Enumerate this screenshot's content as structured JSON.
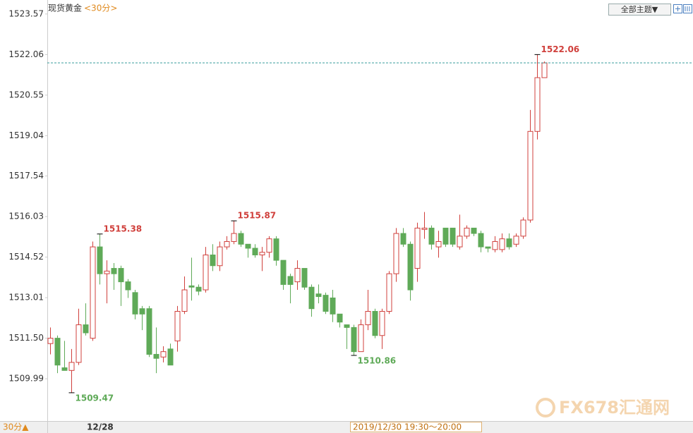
{
  "chart_data": {
    "type": "candlestick",
    "title": "现货黄金",
    "subtitle": "<30分>",
    "toolbar_button": "全部主题▼",
    "period_label": "30分▲",
    "time_label": "2019/12/30 19:30～20:00",
    "watermark": "FX678汇通网",
    "categories": [
      null,
      null,
      null,
      null,
      null,
      null,
      "12/28",
      null,
      null,
      null,
      null,
      null,
      null,
      null,
      null,
      null,
      null,
      null,
      null,
      null,
      null,
      null,
      null,
      null,
      null,
      null,
      null,
      null,
      null,
      null,
      null,
      null,
      null,
      null,
      null,
      null,
      null,
      null,
      null,
      null,
      null,
      null,
      null,
      null,
      null,
      null,
      null,
      null,
      null,
      null,
      null,
      null,
      null,
      null,
      null,
      null,
      null,
      null,
      null,
      null,
      null,
      null,
      null,
      null,
      null,
      null,
      null,
      null,
      null,
      null,
      null
    ],
    "open": [
      1511.3,
      1511.5,
      1510.4,
      1510.3,
      1510.6,
      1512.0,
      1511.5,
      1514.9,
      1513.9,
      1514.1,
      1514.1,
      1513.6,
      1513.2,
      1512.6,
      1512.6,
      1510.9,
      1510.8,
      1511.1,
      1511.4,
      1512.5,
      1513.45,
      1513.4,
      1513.3,
      1514.6,
      1514.2,
      1514.9,
      1515.1,
      1515.4,
      1515.0,
      1514.85,
      1514.6,
      1514.7,
      1515.2,
      1514.4,
      1513.8,
      1513.6,
      1514.1,
      1513.4,
      1513.15,
      1513.1,
      1513.0,
      1512.4,
      1512.0,
      1511.9,
      1511.0,
      1512.0,
      1512.5,
      1511.6,
      1512.5,
      1513.9,
      1515.4,
      1515.0,
      1514.1,
      1515.55,
      1515.6,
      1514.9,
      1515.6,
      1515.6,
      1514.9,
      1515.3,
      1515.6,
      1515.4,
      1514.9,
      1514.8,
      1514.8,
      1515.2,
      1515.0,
      1515.3,
      1515.9,
      1519.2,
      1521.2
    ],
    "high": [
      1511.9,
      1511.6,
      1511.4,
      1511.1,
      1512.6,
      1512.8,
      1515.1,
      1515.38,
      1514.4,
      1514.3,
      1514.2,
      1513.7,
      1513.3,
      1512.7,
      1512.7,
      1511.9,
      1511.2,
      1511.3,
      1512.7,
      1513.8,
      1514.5,
      1513.5,
      1514.9,
      1515.0,
      1515.1,
      1515.3,
      1515.87,
      1515.5,
      1515.0,
      1515.0,
      1514.9,
      1515.3,
      1515.3,
      1514.4,
      1513.9,
      1514.4,
      1514.1,
      1513.5,
      1513.5,
      1513.2,
      1513.3,
      1512.4,
      1512.0,
      1512.0,
      1512.2,
      1513.3,
      1512.6,
      1512.6,
      1514.0,
      1515.6,
      1515.6,
      1515.1,
      1515.8,
      1516.2,
      1515.7,
      1515.5,
      1515.6,
      1515.6,
      1516.1,
      1515.7,
      1515.6,
      1515.5,
      1514.9,
      1515.3,
      1515.4,
      1515.4,
      1515.4,
      1516.0,
      1520.0,
      1522.06,
      1521.8
    ],
    "low": [
      1510.9,
      1510.2,
      1510.3,
      1509.47,
      1510.5,
      1511.6,
      1511.4,
      1513.5,
      1512.8,
      1513.3,
      1512.7,
      1513.0,
      1512.2,
      1511.8,
      1510.8,
      1510.2,
      1510.6,
      1510.5,
      1511.0,
      1512.4,
      1512.9,
      1513.1,
      1513.2,
      1514.0,
      1514.0,
      1514.8,
      1515.0,
      1514.9,
      1514.5,
      1514.5,
      1514.0,
      1514.5,
      1514.2,
      1513.3,
      1512.8,
      1513.3,
      1513.3,
      1512.3,
      1512.8,
      1512.4,
      1512.1,
      1511.9,
      1511.1,
      1510.86,
      1511.0,
      1511.8,
      1511.5,
      1511.1,
      1512.4,
      1513.6,
      1514.9,
      1512.9,
      1513.6,
      1515.2,
      1514.8,
      1514.5,
      1514.9,
      1514.9,
      1514.8,
      1515.2,
      1515.3,
      1514.7,
      1514.7,
      1514.7,
      1514.7,
      1514.8,
      1514.9,
      1515.2,
      1515.8,
      1518.9,
      1521.2
    ],
    "close": [
      1511.5,
      1510.5,
      1510.3,
      1510.6,
      1512.0,
      1511.7,
      1514.9,
      1513.9,
      1514.0,
      1513.9,
      1513.6,
      1513.3,
      1512.4,
      1512.4,
      1510.9,
      1510.75,
      1511.0,
      1510.5,
      1512.5,
      1513.3,
      1513.4,
      1513.25,
      1514.6,
      1514.2,
      1514.9,
      1515.1,
      1515.4,
      1515.0,
      1514.85,
      1514.6,
      1514.7,
      1515.2,
      1514.4,
      1513.5,
      1513.5,
      1514.1,
      1513.4,
      1512.6,
      1513.05,
      1512.5,
      1512.4,
      1512.1,
      1511.9,
      1511.0,
      1512.0,
      1512.5,
      1511.6,
      1512.5,
      1513.9,
      1515.4,
      1515.0,
      1513.3,
      1515.6,
      1515.6,
      1515.0,
      1515.1,
      1515.0,
      1515.0,
      1515.3,
      1515.6,
      1515.4,
      1514.9,
      1514.85,
      1515.1,
      1515.2,
      1514.9,
      1515.3,
      1515.9,
      1519.2,
      1521.2,
      1521.75
    ],
    "extremes": [
      1509.47,
      1515.38,
      1515.87,
      1510.86,
      1522.06
    ],
    "price_line": 1521.75,
    "up_color": "#d0403c",
    "down_color": "#5faa58",
    "price_line_color": "#3a9c9c",
    "ylim": [
      1508.47,
      1523.96
    ],
    "yticks": [
      1509.99,
      {
        "value": 1511.5,
        "label": "1511.50"
      },
      1513.01,
      1514.52,
      1516.03,
      1517.54,
      1519.04,
      1520.55,
      1522.06,
      1523.57
    ],
    "grid": false
  }
}
